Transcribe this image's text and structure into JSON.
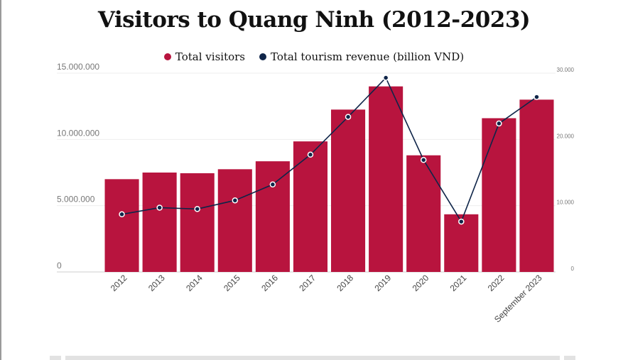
{
  "chart_data": {
    "type": "bar",
    "title": "Visitors to Quang Ninh (2012-2023)",
    "categories": [
      "2012",
      "2013",
      "2014",
      "2015",
      "2016",
      "2017",
      "2018",
      "2019",
      "2020",
      "2021",
      "2022",
      "September 2023"
    ],
    "series": [
      {
        "name": "Total visitors",
        "type": "bar",
        "axis": "left",
        "color": "#B8143E",
        "values": [
          7000000,
          7500000,
          7450000,
          7750000,
          8350000,
          9850000,
          12250000,
          14000000,
          8800000,
          4350000,
          11600000,
          13000000
        ]
      },
      {
        "name": "Total tourism revenue (billion VND)",
        "type": "line",
        "axis": "right",
        "color": "#0F2549",
        "values": [
          8700,
          9700,
          9500,
          10800,
          13200,
          17700,
          23400,
          29300,
          16900,
          7600,
          22400,
          26400
        ]
      }
    ],
    "y_left": {
      "ylim": [
        0,
        15000000
      ],
      "ticks": [
        "0",
        "5.000.000",
        "10.000.000",
        "15.000.000"
      ]
    },
    "y_right": {
      "ylim": [
        0,
        30000
      ],
      "ticks": [
        "0",
        "10.000",
        "20.000",
        "30.000"
      ]
    },
    "grid": true,
    "legend_position": "top-center"
  }
}
